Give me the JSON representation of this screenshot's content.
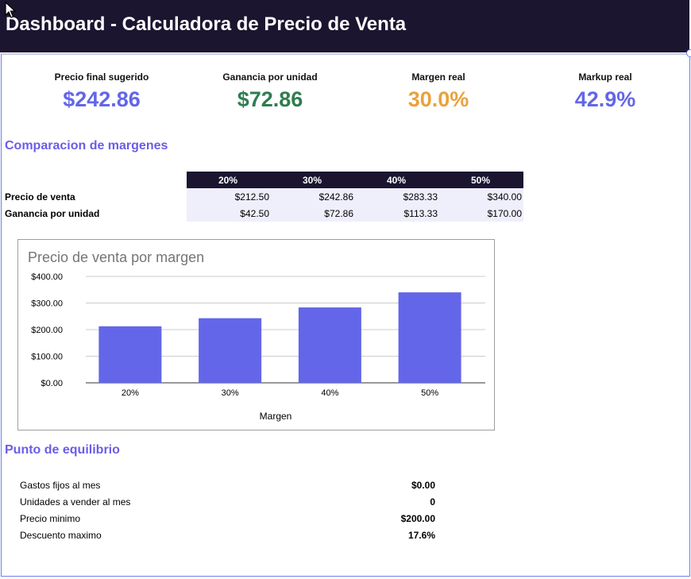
{
  "header": {
    "title": "Dashboard - Calculadora de Precio de Venta"
  },
  "colors": {
    "header_bg": "#1b1530",
    "accent_purple": "#6c5ce7",
    "kpi_blue": "#6366e8",
    "kpi_green": "#2e7d4f",
    "kpi_orange": "#e9a23b",
    "bar": "#6366e8"
  },
  "kpis": [
    {
      "label": "Precio final sugerido",
      "value": "$242.86"
    },
    {
      "label": "Ganancia por unidad",
      "value": "$72.86"
    },
    {
      "label": "Margen real",
      "value": "30.0%"
    },
    {
      "label": "Markup real",
      "value": "42.9%"
    }
  ],
  "comparison": {
    "title": "Comparacion de margenes",
    "columns": [
      "20%",
      "30%",
      "40%",
      "50%"
    ],
    "rows": [
      {
        "label": "Precio de venta",
        "values": [
          "$212.50",
          "$242.86",
          "$283.33",
          "$340.00"
        ]
      },
      {
        "label": "Ganancia por unidad",
        "values": [
          "$42.50",
          "$72.86",
          "$113.33",
          "$170.00"
        ]
      }
    ]
  },
  "chart_data": {
    "type": "bar",
    "title": "Precio de venta por margen",
    "xlabel": "Margen",
    "ylabel": "",
    "categories": [
      "20%",
      "30%",
      "40%",
      "50%"
    ],
    "values": [
      212.5,
      242.86,
      283.33,
      340.0
    ],
    "ylim": [
      0,
      400
    ],
    "yticks": [
      0,
      100,
      200,
      300,
      400
    ],
    "ytick_labels": [
      "$0.00",
      "$100.00",
      "$200.00",
      "$300.00",
      "$400.00"
    ],
    "grid": true,
    "legend": "none"
  },
  "breakeven": {
    "title": "Punto de equilibrio",
    "rows": [
      {
        "label": "Gastos fijos al mes",
        "value": "$0.00"
      },
      {
        "label": "Unidades a vender al mes",
        "value": "0"
      },
      {
        "label": "Precio minimo",
        "value": "$200.00"
      },
      {
        "label": "Descuento maximo",
        "value": "17.6%"
      }
    ]
  }
}
